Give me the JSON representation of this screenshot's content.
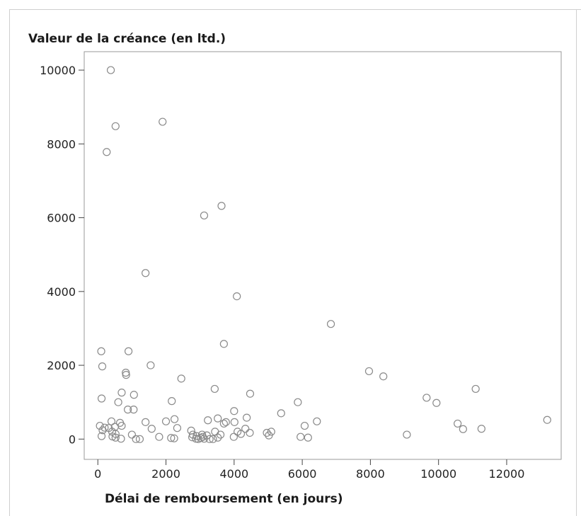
{
  "chart_data": {
    "type": "scatter",
    "title": "",
    "ylabel": "Valeur de la créance (en ltd.)",
    "xlabel": "Délai de remboursement (en jours)",
    "xlim": [
      -400,
      13600
    ],
    "ylim": [
      -550,
      10500
    ],
    "xticks": [
      0,
      2000,
      4000,
      6000,
      8000,
      10000,
      12000
    ],
    "yticks": [
      0,
      2000,
      4000,
      6000,
      8000,
      10000
    ],
    "xtick_labels": [
      "0",
      "2000",
      "4000",
      "6000",
      "8000",
      "10000",
      "12000"
    ],
    "ytick_labels": [
      "0",
      "2000",
      "4000",
      "6000",
      "8000",
      "10000"
    ],
    "grid": false,
    "marker_color": "#8a8a8a",
    "points": [
      [
        380,
        10000
      ],
      [
        1900,
        8600
      ],
      [
        520,
        8480
      ],
      [
        260,
        7780
      ],
      [
        3630,
        6320
      ],
      [
        3120,
        6060
      ],
      [
        1400,
        4500
      ],
      [
        4080,
        3870
      ],
      [
        6840,
        3120
      ],
      [
        3700,
        2580
      ],
      [
        100,
        2380
      ],
      [
        900,
        2380
      ],
      [
        130,
        1970
      ],
      [
        1550,
        2000
      ],
      [
        820,
        1800
      ],
      [
        830,
        1740
      ],
      [
        7960,
        1840
      ],
      [
        8380,
        1700
      ],
      [
        2450,
        1640
      ],
      [
        3430,
        1360
      ],
      [
        11090,
        1360
      ],
      [
        700,
        1260
      ],
      [
        1060,
        1200
      ],
      [
        4470,
        1230
      ],
      [
        110,
        1100
      ],
      [
        2170,
        1030
      ],
      [
        9650,
        1120
      ],
      [
        9940,
        980
      ],
      [
        600,
        1000
      ],
      [
        5870,
        1000
      ],
      [
        13190,
        520
      ],
      [
        880,
        800
      ],
      [
        1050,
        800
      ],
      [
        4000,
        760
      ],
      [
        5380,
        700
      ],
      [
        400,
        480
      ],
      [
        650,
        440
      ],
      [
        1400,
        460
      ],
      [
        2000,
        480
      ],
      [
        2250,
        540
      ],
      [
        3230,
        510
      ],
      [
        3520,
        560
      ],
      [
        3700,
        420
      ],
      [
        3760,
        460
      ],
      [
        4010,
        460
      ],
      [
        4370,
        580
      ],
      [
        6430,
        480
      ],
      [
        10560,
        420
      ],
      [
        60,
        360
      ],
      [
        320,
        300
      ],
      [
        500,
        330
      ],
      [
        700,
        360
      ],
      [
        1580,
        280
      ],
      [
        2330,
        300
      ],
      [
        4330,
        280
      ],
      [
        6070,
        360
      ],
      [
        10720,
        270
      ],
      [
        11260,
        280
      ],
      [
        140,
        240
      ],
      [
        200,
        310
      ],
      [
        420,
        200
      ],
      [
        520,
        140
      ],
      [
        2740,
        230
      ],
      [
        2790,
        120
      ],
      [
        3440,
        200
      ],
      [
        3600,
        120
      ],
      [
        4100,
        200
      ],
      [
        4200,
        140
      ],
      [
        4460,
        170
      ],
      [
        4960,
        170
      ],
      [
        5020,
        100
      ],
      [
        5090,
        200
      ],
      [
        9070,
        120
      ],
      [
        1000,
        120
      ],
      [
        110,
        80
      ],
      [
        430,
        70
      ],
      [
        520,
        40
      ],
      [
        680,
        10
      ],
      [
        1120,
        0
      ],
      [
        1230,
        0
      ],
      [
        1800,
        60
      ],
      [
        2150,
        30
      ],
      [
        2240,
        20
      ],
      [
        2770,
        50
      ],
      [
        2880,
        10
      ],
      [
        2950,
        0
      ],
      [
        3020,
        30
      ],
      [
        3080,
        60
      ],
      [
        3120,
        10
      ],
      [
        3200,
        100
      ],
      [
        3280,
        0
      ],
      [
        3380,
        0
      ],
      [
        3520,
        40
      ],
      [
        3990,
        60
      ],
      [
        5950,
        60
      ],
      [
        6170,
        40
      ],
      [
        3060,
        120
      ],
      [
        2900,
        80
      ]
    ]
  }
}
